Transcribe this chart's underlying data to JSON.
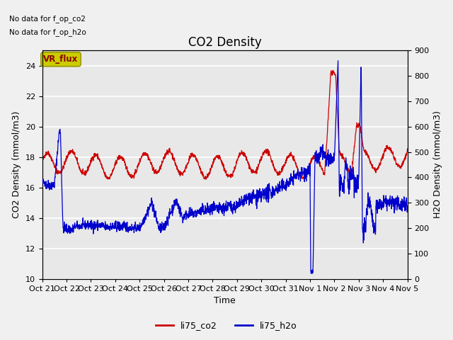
{
  "title": "CO2 Density",
  "xlabel": "Time",
  "ylabel_left": "CO2 Density (mmol/m3)",
  "ylabel_right": "H2O Density (mmol/m3)",
  "ylim_left": [
    10,
    25
  ],
  "ylim_right": [
    0,
    900
  ],
  "yticks_left": [
    10,
    12,
    14,
    16,
    18,
    20,
    22,
    24
  ],
  "yticks_right": [
    0,
    100,
    200,
    300,
    400,
    500,
    600,
    700,
    800,
    900
  ],
  "no_data_text1": "No data for f_op_co2",
  "no_data_text2": "No data for f_op_h2o",
  "vr_flux_label": "VR_flux",
  "legend_labels": [
    "li75_co2",
    "li75_h2o"
  ],
  "co2_color": "#cc0000",
  "h2o_color": "#0000cc",
  "plot_bg_color": "#e8e8e8",
  "fig_bg_color": "#f0f0f0",
  "vr_flux_bg": "#cccc00",
  "vr_flux_text_color": "#880000",
  "grid_color": "#ffffff",
  "title_fontsize": 12,
  "axis_label_fontsize": 9,
  "tick_label_fontsize": 8,
  "xtick_labels": [
    "Oct 21",
    "Oct 22",
    "Oct 23",
    "Oct 24",
    "Oct 25",
    "Oct 26",
    "Oct 27",
    "Oct 28",
    "Oct 29",
    "Oct 30",
    "Oct 31",
    "Nov 1",
    "Nov 2",
    "Nov 3",
    "Nov 4",
    "Nov 5"
  ]
}
